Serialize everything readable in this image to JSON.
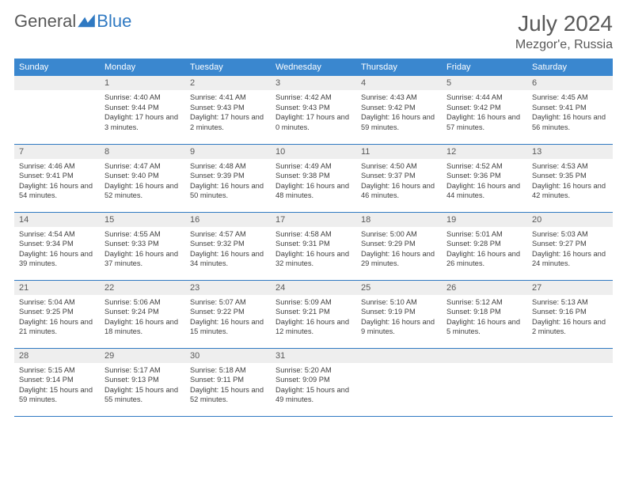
{
  "brand": {
    "part1": "General",
    "part2": "Blue"
  },
  "title": "July 2024",
  "location": "Mezgor'e, Russia",
  "colors": {
    "header_bg": "#3a87cf",
    "border": "#2f79c2",
    "daynum_bg": "#eeeeee",
    "text_muted": "#595959"
  },
  "weekdays": [
    "Sunday",
    "Monday",
    "Tuesday",
    "Wednesday",
    "Thursday",
    "Friday",
    "Saturday"
  ],
  "weeks": [
    [
      null,
      {
        "n": "1",
        "sr": "4:40 AM",
        "ss": "9:44 PM",
        "dl": "17 hours and 3 minutes."
      },
      {
        "n": "2",
        "sr": "4:41 AM",
        "ss": "9:43 PM",
        "dl": "17 hours and 2 minutes."
      },
      {
        "n": "3",
        "sr": "4:42 AM",
        "ss": "9:43 PM",
        "dl": "17 hours and 0 minutes."
      },
      {
        "n": "4",
        "sr": "4:43 AM",
        "ss": "9:42 PM",
        "dl": "16 hours and 59 minutes."
      },
      {
        "n": "5",
        "sr": "4:44 AM",
        "ss": "9:42 PM",
        "dl": "16 hours and 57 minutes."
      },
      {
        "n": "6",
        "sr": "4:45 AM",
        "ss": "9:41 PM",
        "dl": "16 hours and 56 minutes."
      }
    ],
    [
      {
        "n": "7",
        "sr": "4:46 AM",
        "ss": "9:41 PM",
        "dl": "16 hours and 54 minutes."
      },
      {
        "n": "8",
        "sr": "4:47 AM",
        "ss": "9:40 PM",
        "dl": "16 hours and 52 minutes."
      },
      {
        "n": "9",
        "sr": "4:48 AM",
        "ss": "9:39 PM",
        "dl": "16 hours and 50 minutes."
      },
      {
        "n": "10",
        "sr": "4:49 AM",
        "ss": "9:38 PM",
        "dl": "16 hours and 48 minutes."
      },
      {
        "n": "11",
        "sr": "4:50 AM",
        "ss": "9:37 PM",
        "dl": "16 hours and 46 minutes."
      },
      {
        "n": "12",
        "sr": "4:52 AM",
        "ss": "9:36 PM",
        "dl": "16 hours and 44 minutes."
      },
      {
        "n": "13",
        "sr": "4:53 AM",
        "ss": "9:35 PM",
        "dl": "16 hours and 42 minutes."
      }
    ],
    [
      {
        "n": "14",
        "sr": "4:54 AM",
        "ss": "9:34 PM",
        "dl": "16 hours and 39 minutes."
      },
      {
        "n": "15",
        "sr": "4:55 AM",
        "ss": "9:33 PM",
        "dl": "16 hours and 37 minutes."
      },
      {
        "n": "16",
        "sr": "4:57 AM",
        "ss": "9:32 PM",
        "dl": "16 hours and 34 minutes."
      },
      {
        "n": "17",
        "sr": "4:58 AM",
        "ss": "9:31 PM",
        "dl": "16 hours and 32 minutes."
      },
      {
        "n": "18",
        "sr": "5:00 AM",
        "ss": "9:29 PM",
        "dl": "16 hours and 29 minutes."
      },
      {
        "n": "19",
        "sr": "5:01 AM",
        "ss": "9:28 PM",
        "dl": "16 hours and 26 minutes."
      },
      {
        "n": "20",
        "sr": "5:03 AM",
        "ss": "9:27 PM",
        "dl": "16 hours and 24 minutes."
      }
    ],
    [
      {
        "n": "21",
        "sr": "5:04 AM",
        "ss": "9:25 PM",
        "dl": "16 hours and 21 minutes."
      },
      {
        "n": "22",
        "sr": "5:06 AM",
        "ss": "9:24 PM",
        "dl": "16 hours and 18 minutes."
      },
      {
        "n": "23",
        "sr": "5:07 AM",
        "ss": "9:22 PM",
        "dl": "16 hours and 15 minutes."
      },
      {
        "n": "24",
        "sr": "5:09 AM",
        "ss": "9:21 PM",
        "dl": "16 hours and 12 minutes."
      },
      {
        "n": "25",
        "sr": "5:10 AM",
        "ss": "9:19 PM",
        "dl": "16 hours and 9 minutes."
      },
      {
        "n": "26",
        "sr": "5:12 AM",
        "ss": "9:18 PM",
        "dl": "16 hours and 5 minutes."
      },
      {
        "n": "27",
        "sr": "5:13 AM",
        "ss": "9:16 PM",
        "dl": "16 hours and 2 minutes."
      }
    ],
    [
      {
        "n": "28",
        "sr": "5:15 AM",
        "ss": "9:14 PM",
        "dl": "15 hours and 59 minutes."
      },
      {
        "n": "29",
        "sr": "5:17 AM",
        "ss": "9:13 PM",
        "dl": "15 hours and 55 minutes."
      },
      {
        "n": "30",
        "sr": "5:18 AM",
        "ss": "9:11 PM",
        "dl": "15 hours and 52 minutes."
      },
      {
        "n": "31",
        "sr": "5:20 AM",
        "ss": "9:09 PM",
        "dl": "15 hours and 49 minutes."
      },
      null,
      null,
      null
    ]
  ],
  "labels": {
    "sunrise": "Sunrise:",
    "sunset": "Sunset:",
    "daylight": "Daylight:"
  }
}
